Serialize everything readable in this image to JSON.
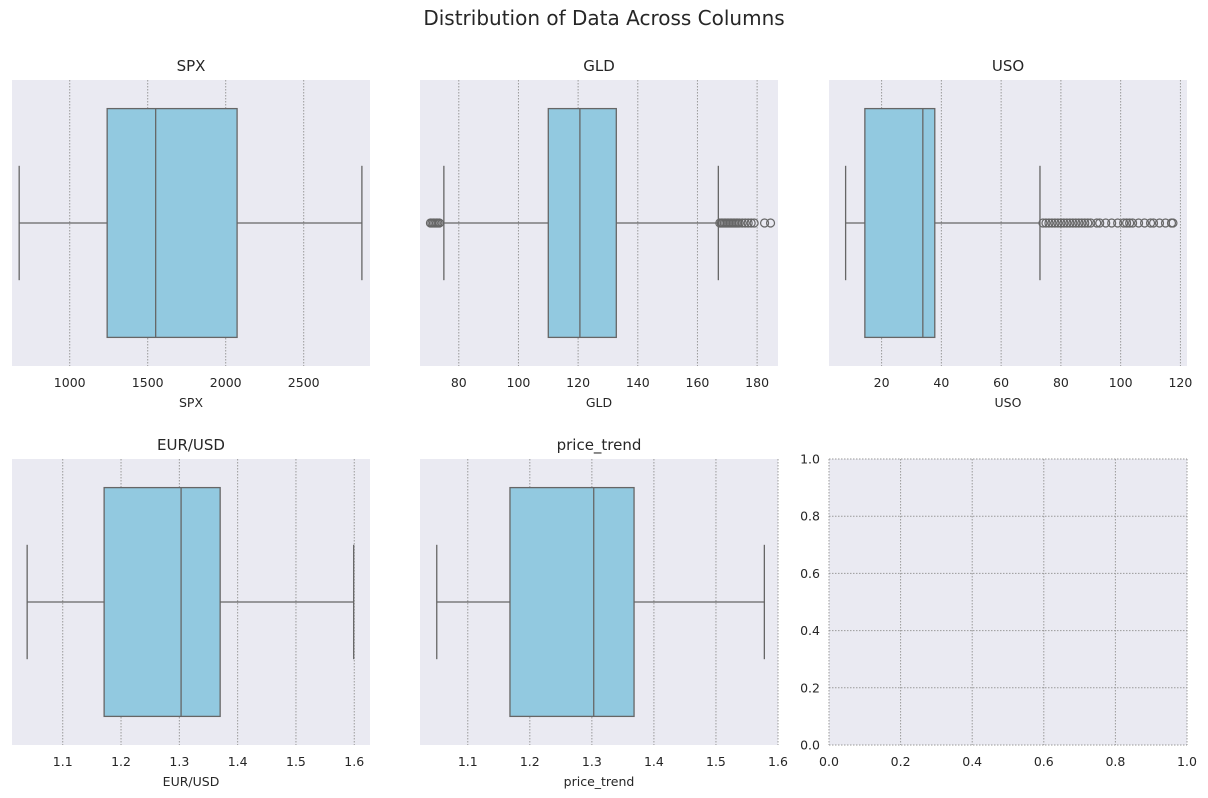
{
  "figure": {
    "title": "Distribution of Data Across Columns"
  },
  "colors": {
    "axes_bg": "#eaeaf2",
    "box_fill": "#92c9e0",
    "line": "#666666",
    "grid": "#9a9a9a",
    "text": "#262626"
  },
  "chart_data": [
    {
      "type": "box",
      "title": "SPX",
      "xlabel": "SPX",
      "xlim": [
        630,
        2925
      ],
      "xticks": [
        1000,
        1500,
        2000,
        2500
      ],
      "xtick_labels": [
        "1000",
        "1500",
        "2000",
        "2500"
      ],
      "stats": {
        "whislo": 676,
        "q1": 1240,
        "median": 1551,
        "q3": 2073,
        "whishi": 2873
      },
      "outliers": []
    },
    {
      "type": "box",
      "title": "GLD",
      "xlabel": "GLD",
      "xlim": [
        67,
        187
      ],
      "xticks": [
        80,
        100,
        120,
        140,
        160,
        180
      ],
      "xtick_labels": [
        "80",
        "100",
        "120",
        "140",
        "160",
        "180"
      ],
      "stats": {
        "whislo": 75,
        "q1": 110,
        "median": 120.6,
        "q3": 132.8,
        "whishi": 167
      },
      "outliers": [
        70.5,
        71,
        71.5,
        72,
        72.5,
        73,
        73.5,
        167.5,
        168,
        168.5,
        169,
        169.5,
        170,
        170.5,
        171,
        171.5,
        172,
        172.5,
        173,
        173.5,
        174,
        175,
        176,
        177,
        178,
        179,
        182.5,
        184.5
      ]
    },
    {
      "type": "box",
      "title": "USO",
      "xlabel": "USO",
      "xlim": [
        2.4,
        122.2
      ],
      "xticks": [
        20,
        40,
        60,
        80,
        100,
        120
      ],
      "xtick_labels": [
        "20",
        "40",
        "60",
        "80",
        "100",
        "120"
      ],
      "stats": {
        "whislo": 7.96,
        "q1": 14.4,
        "median": 33.8,
        "q3": 37.8,
        "whishi": 73
      },
      "outliers": [
        74,
        75,
        76,
        77,
        78,
        79,
        80,
        81,
        82,
        83,
        84,
        85,
        86,
        87,
        88,
        89,
        90,
        92,
        93,
        95,
        97,
        99,
        101,
        102,
        103,
        104,
        106,
        108,
        110,
        111,
        113,
        115,
        117,
        117.5
      ]
    },
    {
      "type": "box",
      "title": "EUR/USD",
      "xlabel": "EUR/USD",
      "xlim": [
        1.013,
        1.627
      ],
      "xticks": [
        1.1,
        1.2,
        1.3,
        1.4,
        1.5,
        1.6
      ],
      "xtick_labels": [
        "1.1",
        "1.2",
        "1.3",
        "1.4",
        "1.5",
        "1.6"
      ],
      "stats": {
        "whislo": 1.039,
        "q1": 1.171,
        "median": 1.303,
        "q3": 1.37,
        "whishi": 1.599
      },
      "outliers": []
    },
    {
      "type": "box",
      "title": "price_trend",
      "xlabel": "price_trend",
      "xlim": [
        1.023,
        1.6
      ],
      "xticks": [
        1.1,
        1.2,
        1.3,
        1.4,
        1.5,
        1.6
      ],
      "xtick_labels": [
        "1.1",
        "1.2",
        "1.3",
        "1.4",
        "1.5",
        "1.6"
      ],
      "stats": {
        "whislo": 1.05,
        "q1": 1.168,
        "median": 1.303,
        "q3": 1.368,
        "whishi": 1.578
      },
      "outliers": []
    },
    {
      "type": "empty",
      "title": "",
      "xlabel": "",
      "xlim": [
        0,
        1
      ],
      "ylim": [
        0,
        1
      ],
      "xticks": [
        0,
        0.2,
        0.4,
        0.6,
        0.8,
        1.0
      ],
      "xtick_labels": [
        "0.0",
        "0.2",
        "0.4",
        "0.6",
        "0.8",
        "1.0"
      ],
      "yticks": [
        0,
        0.2,
        0.4,
        0.6,
        0.8,
        1.0
      ],
      "ytick_labels": [
        "0.0",
        "0.2",
        "0.4",
        "0.6",
        "0.8",
        "1.0"
      ]
    }
  ]
}
